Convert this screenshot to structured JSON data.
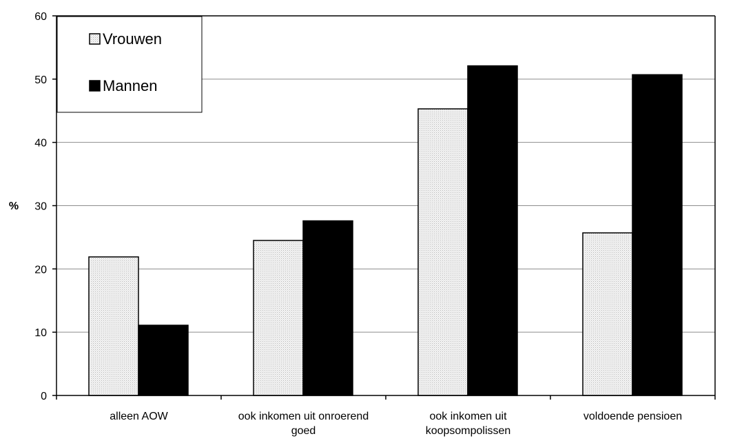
{
  "chart_data": {
    "type": "bar",
    "title": "",
    "xlabel": "",
    "ylabel": "%",
    "ylim": [
      0,
      60
    ],
    "yticks": [
      0,
      10,
      20,
      30,
      40,
      50,
      60
    ],
    "categories": [
      [
        "alleen AOW"
      ],
      [
        "ook inkomen uit onroerend",
        "goed"
      ],
      [
        "ook inkomen uit",
        "koopsompolissen"
      ],
      [
        "voldoende pensioen"
      ]
    ],
    "series": [
      {
        "name": "Vrouwen",
        "values": [
          21.9,
          24.5,
          45.3,
          25.7
        ],
        "color": "#ececec",
        "pattern": "dotted-light-gray"
      },
      {
        "name": "Mannen",
        "values": [
          11.1,
          27.6,
          52.1,
          50.7
        ],
        "color": "#000000",
        "pattern": "solid"
      }
    ],
    "grid": true,
    "legend_position": "top-left"
  }
}
